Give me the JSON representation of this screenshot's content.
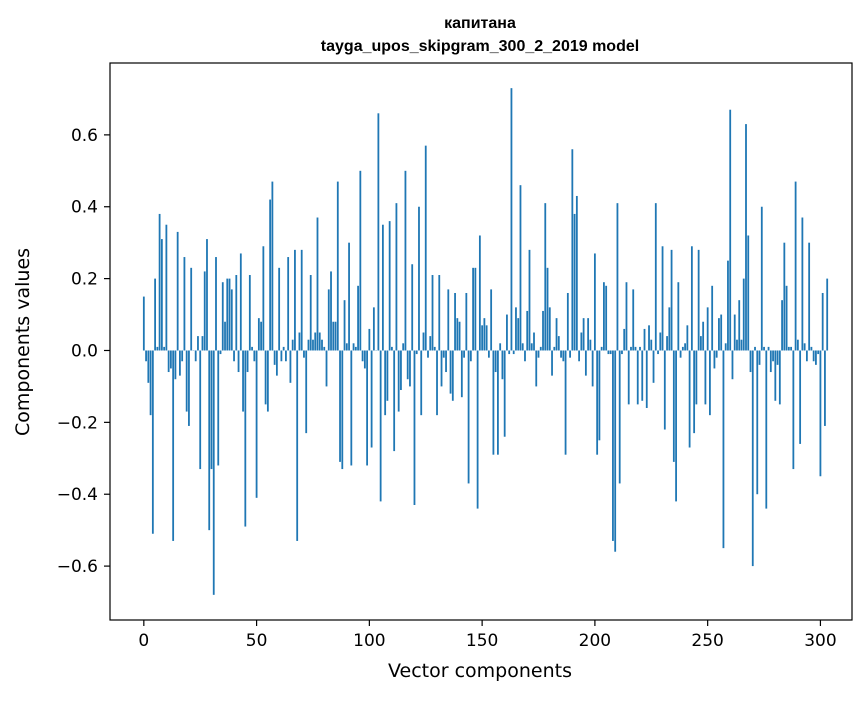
{
  "chart_data": {
    "type": "bar",
    "title": "капитана",
    "subtitle": "tayga_upos_skipgram_300_2_2019 model",
    "xlabel": "Vector components",
    "ylabel": "Components values",
    "xlim": [
      -15,
      314
    ],
    "ylim": [
      -0.75,
      0.8
    ],
    "x_ticks": [
      0,
      50,
      100,
      150,
      200,
      250,
      300
    ],
    "x_tick_labels": [
      "0",
      "50",
      "100",
      "150",
      "200",
      "250",
      "300"
    ],
    "y_ticks": [
      -0.6,
      -0.4,
      -0.2,
      0.0,
      0.2,
      0.4,
      0.6
    ],
    "y_tick_labels": [
      "−0.6",
      "−0.4",
      "−0.2",
      "0.0",
      "0.2",
      "0.4",
      "0.6"
    ],
    "grid": false,
    "bar_color": "#1f77b4",
    "x_start": 0,
    "values": [
      0.15,
      -0.03,
      -0.09,
      -0.18,
      -0.51,
      0.2,
      0.01,
      0.38,
      0.31,
      0.01,
      0.35,
      -0.06,
      -0.05,
      -0.53,
      -0.08,
      0.33,
      -0.07,
      -0.03,
      0.26,
      -0.17,
      -0.21,
      0.23,
      0.0,
      -0.03,
      0.04,
      -0.33,
      0.04,
      0.22,
      0.31,
      -0.5,
      -0.33,
      -0.68,
      0.26,
      -0.32,
      -0.01,
      0.19,
      0.08,
      0.2,
      0.2,
      0.17,
      -0.03,
      0.21,
      -0.06,
      0.27,
      -0.17,
      -0.49,
      -0.06,
      0.21,
      0.01,
      -0.03,
      -0.41,
      0.09,
      0.08,
      0.29,
      -0.15,
      -0.17,
      0.42,
      0.47,
      -0.04,
      -0.07,
      0.23,
      -0.03,
      0.01,
      -0.03,
      0.26,
      -0.09,
      0.03,
      0.28,
      -0.53,
      0.05,
      0.28,
      -0.02,
      -0.23,
      0.03,
      0.21,
      0.03,
      0.05,
      0.37,
      0.05,
      0.03,
      0.01,
      -0.1,
      0.17,
      0.22,
      0.08,
      0.08,
      0.47,
      -0.31,
      -0.33,
      0.14,
      0.02,
      0.3,
      -0.32,
      0.02,
      0.01,
      0.18,
      0.5,
      -0.03,
      -0.05,
      -0.32,
      0.06,
      -0.27,
      0.12,
      0.0,
      0.66,
      -0.42,
      0.35,
      -0.18,
      -0.14,
      0.36,
      0.01,
      -0.28,
      0.41,
      -0.17,
      -0.11,
      0.02,
      0.5,
      -0.08,
      -0.1,
      0.24,
      -0.43,
      -0.01,
      0.4,
      -0.18,
      0.05,
      0.57,
      -0.02,
      0.04,
      0.21,
      0.01,
      -0.18,
      0.21,
      -0.1,
      -0.02,
      -0.06,
      0.17,
      -0.12,
      -0.14,
      0.16,
      0.09,
      0.08,
      -0.13,
      -0.02,
      0.16,
      -0.37,
      -0.03,
      0.23,
      0.23,
      -0.44,
      0.32,
      0.07,
      0.09,
      0.07,
      -0.02,
      0.17,
      -0.29,
      -0.06,
      -0.29,
      0.02,
      -0.08,
      -0.24,
      0.1,
      -0.01,
      0.73,
      -0.01,
      0.12,
      0.09,
      0.46,
      0.02,
      -0.03,
      0.11,
      0.28,
      0.02,
      0.05,
      -0.1,
      -0.02,
      0.01,
      0.11,
      0.41,
      0.23,
      0.12,
      -0.07,
      0.01,
      0.09,
      0.04,
      -0.02,
      -0.03,
      -0.29,
      0.16,
      -0.02,
      0.56,
      0.38,
      0.43,
      -0.03,
      0.05,
      0.09,
      -0.07,
      0.09,
      0.03,
      -0.1,
      0.27,
      -0.29,
      -0.25,
      0.01,
      0.19,
      0.18,
      -0.01,
      -0.01,
      -0.53,
      -0.56,
      0.41,
      -0.37,
      -0.01,
      0.06,
      0.19,
      -0.15,
      0.01,
      0.17,
      0.01,
      -0.15,
      0.01,
      -0.14,
      0.06,
      -0.16,
      0.07,
      0.03,
      -0.09,
      0.41,
      -0.01,
      0.05,
      0.29,
      -0.22,
      0.04,
      0.12,
      0.28,
      -0.31,
      -0.42,
      0.19,
      -0.02,
      0.01,
      0.02,
      0.07,
      -0.27,
      0.29,
      -0.23,
      -0.15,
      0.28,
      0.04,
      0.08,
      -0.15,
      0.12,
      -0.18,
      0.18,
      -0.05,
      -0.02,
      0.09,
      0.1,
      -0.55,
      0.02,
      0.25,
      0.67,
      -0.08,
      0.1,
      0.03,
      0.14,
      0.03,
      0.2,
      0.63,
      0.32,
      -0.06,
      -0.6,
      0.01,
      -0.4,
      -0.04,
      0.4,
      0.01,
      -0.44,
      0.01,
      -0.06,
      -0.03,
      -0.14,
      -0.04,
      -0.15,
      0.14,
      0.3,
      0.18,
      0.01,
      0.01,
      -0.33,
      0.47,
      0.03,
      -0.26,
      0.37,
      0.02,
      -0.03,
      0.3,
      0.01,
      -0.03,
      -0.04,
      -0.01,
      -0.35,
      0.16,
      -0.21,
      0.2
    ]
  }
}
